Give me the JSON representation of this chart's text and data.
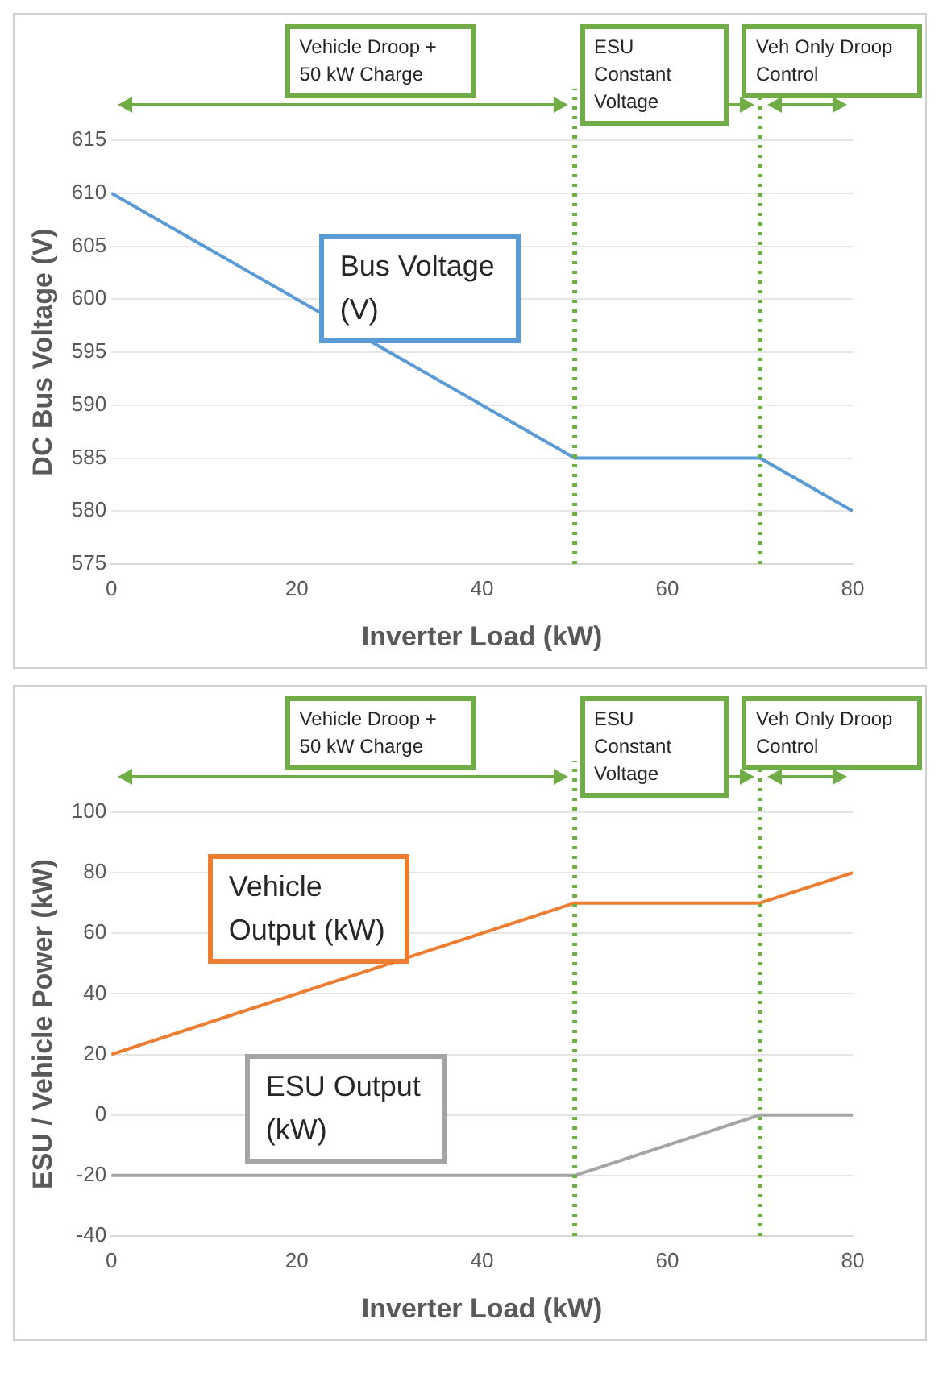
{
  "chart_data": [
    {
      "type": "line",
      "x": [
        0,
        50,
        70,
        80
      ],
      "xlabel": "Inverter Load (kW)",
      "ylabel": "DC Bus Voltage (V)",
      "xlim": [
        0,
        80
      ],
      "xticks": [
        0,
        20,
        40,
        60,
        80
      ],
      "ylim": [
        575,
        615
      ],
      "yticks": [
        575,
        580,
        585,
        590,
        595,
        600,
        605,
        610,
        615
      ],
      "grid": "y",
      "legend": false,
      "series": [
        {
          "name": "Bus Voltage (V)",
          "color": "#5b9bd5",
          "values": [
            610,
            585,
            585,
            580
          ]
        }
      ],
      "ref_lines": [
        {
          "axis": "x",
          "value": 50,
          "color": "#70ad47",
          "line_style": "dotted"
        },
        {
          "axis": "x",
          "value": 70,
          "color": "#70ad47",
          "line_style": "dotted"
        }
      ],
      "annotations": [
        "Vehicle Droop + 50 kW Charge",
        "ESU Constant Voltage",
        "Veh Only Droop Control"
      ]
    },
    {
      "type": "line",
      "x": [
        0,
        50,
        70,
        80
      ],
      "xlabel": "Inverter Load (kW)",
      "ylabel": "ESU / Vehicle Power (kW)",
      "xlim": [
        0,
        80
      ],
      "xticks": [
        0,
        20,
        40,
        60,
        80
      ],
      "ylim": [
        -40,
        100
      ],
      "yticks": [
        -40,
        -20,
        0,
        20,
        40,
        60,
        80,
        100
      ],
      "grid": "y",
      "legend": false,
      "series": [
        {
          "name": "Vehicle Output (kW)",
          "color": "#ed7d31",
          "values": [
            20,
            70,
            70,
            80
          ]
        },
        {
          "name": "ESU Output (kW)",
          "color": "#a5a5a5",
          "values": [
            -20,
            -20,
            0,
            0
          ]
        }
      ],
      "ref_lines": [
        {
          "axis": "x",
          "value": 50,
          "color": "#70ad47",
          "line_style": "dotted"
        },
        {
          "axis": "x",
          "value": 70,
          "color": "#70ad47",
          "line_style": "dotted"
        }
      ],
      "annotations": [
        "Vehicle Droop + 50 kW Charge",
        "ESU Constant Voltage",
        "Veh Only Droop Control"
      ]
    }
  ]
}
